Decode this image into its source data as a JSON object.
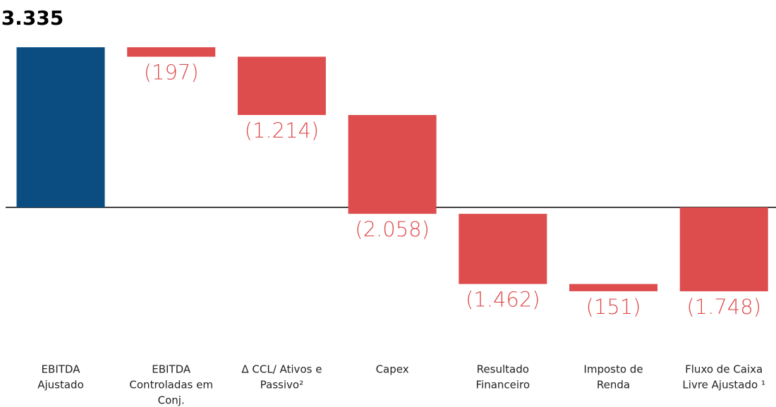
{
  "chart_data": {
    "type": "waterfall",
    "categories": [
      [
        "EBITDA",
        "Ajustado"
      ],
      [
        "EBITDA",
        "Controladas em",
        "Conj."
      ],
      [
        "Δ CCL/ Ativos e",
        "Passivo²"
      ],
      [
        "Capex"
      ],
      [
        "Resultado",
        "Financeiro"
      ],
      [
        "Imposto de",
        "Renda"
      ],
      [
        "Fluxo de Caixa",
        "Livre Ajustado ¹"
      ]
    ],
    "values": [
      3335,
      -197,
      -1214,
      -2058,
      -1462,
      -151,
      -1748
    ],
    "value_labels": [
      "3.335",
      "(197)",
      "(1.214)",
      "(2.058)",
      "(1.462)",
      "(151)",
      "(1.748)"
    ],
    "measures": [
      "absolute",
      "relative",
      "relative",
      "relative",
      "relative",
      "relative",
      "total"
    ],
    "colors": [
      "#0b4d80",
      "#de4d4d",
      "#de4d4d",
      "#de4d4d",
      "#de4d4d",
      "#de4d4d",
      "#de4d4d"
    ]
  }
}
